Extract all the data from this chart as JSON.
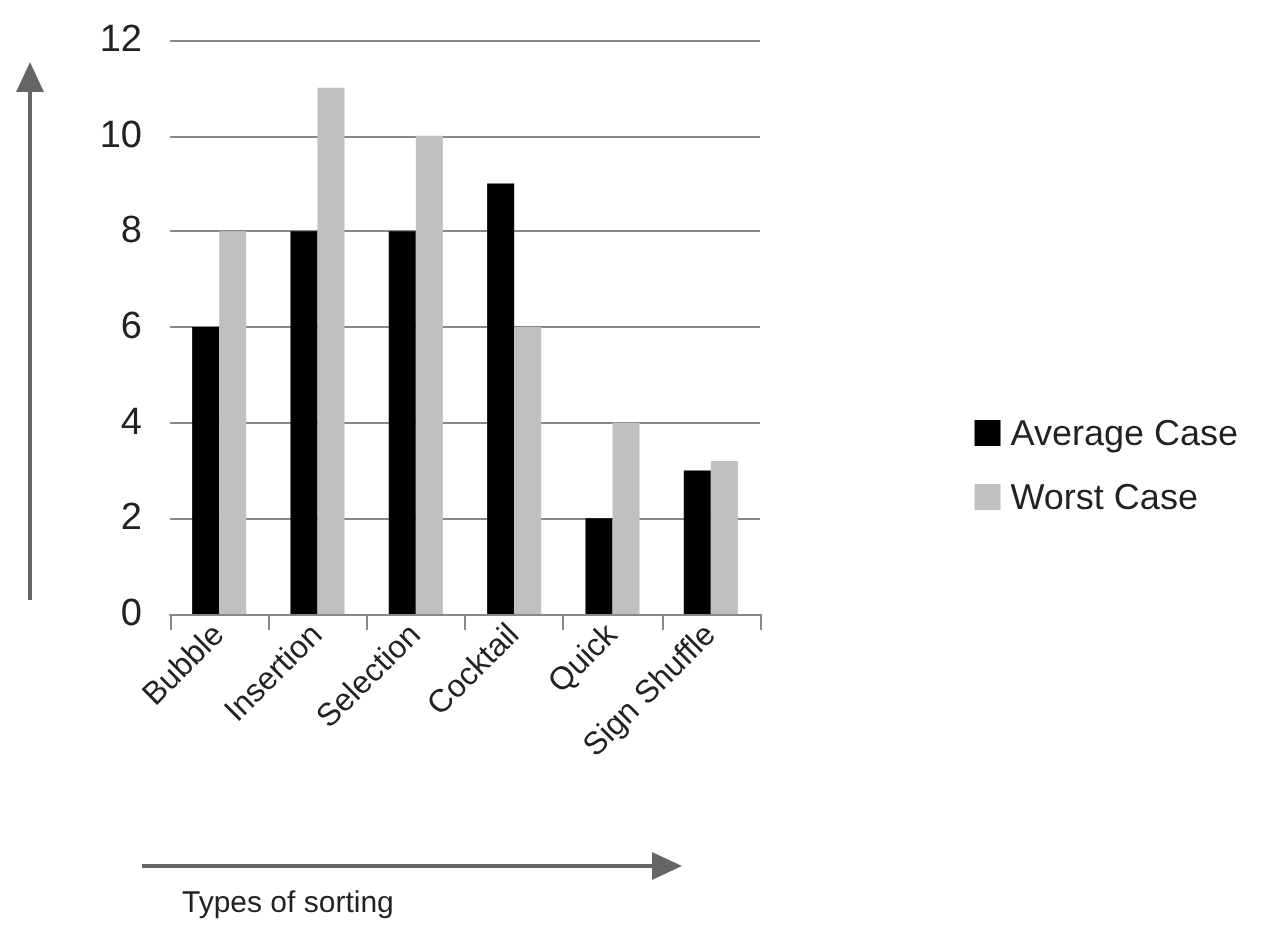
{
  "chart_data": {
    "type": "bar",
    "xlabel": "Types of sorting",
    "categories": [
      "Bubble",
      "Insertion",
      "Selection",
      "Cocktail",
      "Quick",
      "Sign Shuffle"
    ],
    "series": [
      {
        "name": "Average Case",
        "color": "#000000",
        "values": [
          6,
          8,
          8,
          9,
          2,
          3
        ]
      },
      {
        "name": "Worst Case",
        "color": "#c0c0c0",
        "values": [
          8,
          11,
          10,
          6,
          4,
          3.2
        ]
      }
    ],
    "ylim": [
      0,
      12
    ],
    "yticks": [
      0,
      2,
      4,
      6,
      8,
      10,
      12
    ],
    "grid": "y",
    "legend": "right"
  }
}
